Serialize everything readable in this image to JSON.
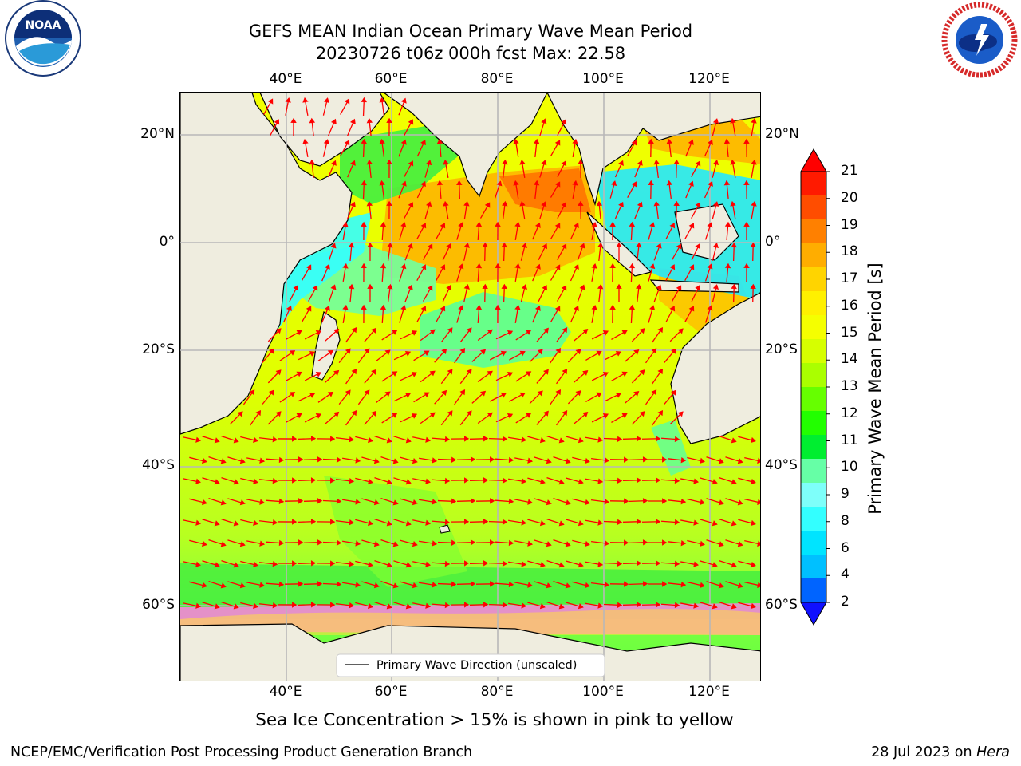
{
  "logos": {
    "noaa": {
      "text": "NOAA",
      "ring_text": "NATIONAL OCEANIC AND ATMOSPHERIC ADMINISTRATION · U.S. DEPARTMENT OF COMMERCE"
    },
    "nws": {
      "ring_text": "NATIONAL WEATHER SERVICE"
    }
  },
  "title": {
    "line1": "GEFS MEAN Indian Ocean Primary Wave Mean Period",
    "line2": "20230726 t06z 000h fcst   Max: 22.58"
  },
  "map": {
    "lon_ticks": [
      "40°E",
      "60°E",
      "80°E",
      "100°E",
      "120°E"
    ],
    "lat_ticks": [
      "20°N",
      "0°",
      "20°S",
      "40°S",
      "60°S"
    ],
    "legend": "Primary Wave Direction (unscaled)",
    "colors": {
      "land": "#efeddf",
      "grid": "#b8b8b8",
      "arrow": "#ff0000",
      "coast": "#000000"
    }
  },
  "colorbar": {
    "label": "Primary Wave Mean Period [s]",
    "ticks": [
      "21",
      "20",
      "19",
      "18",
      "17",
      "16",
      "15",
      "14",
      "13",
      "12",
      "11",
      "10",
      "9",
      "8",
      "6",
      "4",
      "2"
    ],
    "colors": [
      "#ff1a00",
      "#ff4d00",
      "#ff8000",
      "#ffad00",
      "#ffd400",
      "#fff000",
      "#f5ff00",
      "#d6ff00",
      "#aaff00",
      "#66ff00",
      "#22ff00",
      "#00ee30",
      "#66ffa6",
      "#7efffa",
      "#33ffff",
      "#00e4ff",
      "#00c0ff",
      "#0064ff"
    ],
    "over_color": "#ff0000",
    "under_color": "#1010ff"
  },
  "caption": "Sea Ice Concentration > 15% is shown in pink to yellow",
  "footer": {
    "left": "NCEP/EMC/Verification Post Processing Product Generation Branch",
    "right_prefix": "28 Jul 2023 on ",
    "right_host": "Hera"
  }
}
